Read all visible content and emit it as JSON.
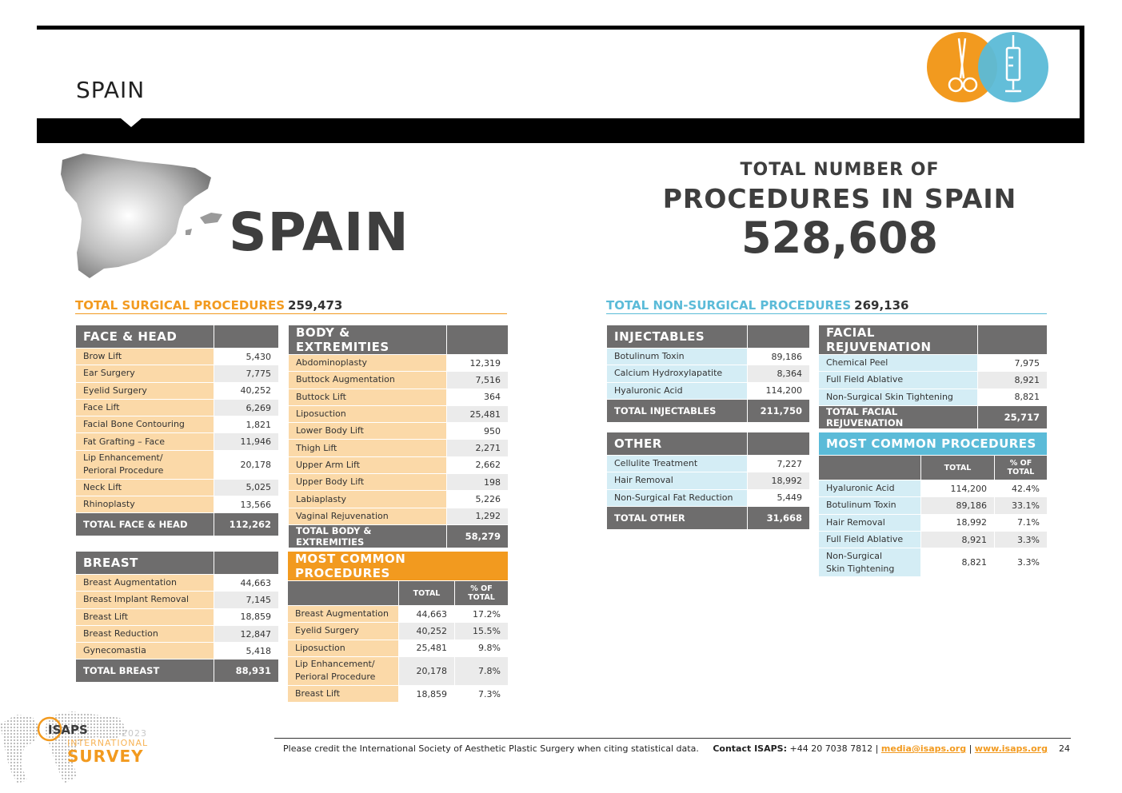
{
  "header": {
    "title": "SPAIN"
  },
  "icons": {
    "left": "scissors-icon",
    "right": "syringe-icon",
    "orange": "#f29a1f",
    "blue": "#5bbbd8"
  },
  "country": {
    "name": "SPAIN"
  },
  "total": {
    "line1": "TOTAL NUMBER OF",
    "line2": "PROCEDURES IN SPAIN",
    "value": "528,608"
  },
  "surgical": {
    "title": "TOTAL SURGICAL PROCEDURES",
    "total": "259,473"
  },
  "nonsurgical": {
    "title": "TOTAL NON-SURGICAL PROCEDURES",
    "total": "269,136"
  },
  "face_head": {
    "title": "FACE & HEAD",
    "rows": [
      {
        "label": "Brow Lift",
        "value": "5,430"
      },
      {
        "label": "Ear Surgery",
        "value": "7,775"
      },
      {
        "label": "Eyelid Surgery",
        "value": "40,252"
      },
      {
        "label": "Face Lift",
        "value": "6,269"
      },
      {
        "label": "Facial Bone Contouring",
        "value": "1,821"
      },
      {
        "label": "Fat Grafting – Face",
        "value": "11,946"
      },
      {
        "label": "Lip Enhancement/\nPerioral Procedure",
        "value": "20,178"
      },
      {
        "label": "Neck Lift",
        "value": "5,025"
      },
      {
        "label": "Rhinoplasty",
        "value": "13,566"
      }
    ],
    "total_label": "TOTAL FACE & HEAD",
    "total_value": "112,262"
  },
  "body_ext": {
    "title": "BODY & EXTREMITIES",
    "rows": [
      {
        "label": "Abdominoplasty",
        "value": "12,319"
      },
      {
        "label": "Buttock Augmentation",
        "value": "7,516"
      },
      {
        "label": "Buttock Lift",
        "value": "364"
      },
      {
        "label": "Liposuction",
        "value": "25,481"
      },
      {
        "label": "Lower Body Lift",
        "value": "950"
      },
      {
        "label": "Thigh Lift",
        "value": "2,271"
      },
      {
        "label": "Upper Arm Lift",
        "value": "2,662"
      },
      {
        "label": "Upper Body Lift",
        "value": "198"
      },
      {
        "label": "Labiaplasty",
        "value": "5,226"
      },
      {
        "label": "Vaginal Rejuvenation",
        "value": "1,292"
      }
    ],
    "total_label": "TOTAL BODY & EXTREMITIES",
    "total_value": "58,279"
  },
  "breast": {
    "title": "BREAST",
    "rows": [
      {
        "label": "Breast Augmentation",
        "value": "44,663"
      },
      {
        "label": "Breast Implant Removal",
        "value": "7,145"
      },
      {
        "label": "Breast Lift",
        "value": "18,859"
      },
      {
        "label": "Breast Reduction",
        "value": "12,847"
      },
      {
        "label": "Gynecomastia",
        "value": "5,418"
      }
    ],
    "total_label": "TOTAL BREAST",
    "total_value": "88,931"
  },
  "common_surg": {
    "title": "MOST COMMON PROCEDURES",
    "col_total": "TOTAL",
    "col_pct": "% OF\nTOTAL",
    "rows": [
      {
        "label": "Breast Augmentation",
        "total": "44,663",
        "pct": "17.2%"
      },
      {
        "label": "Eyelid Surgery",
        "total": "40,252",
        "pct": "15.5%"
      },
      {
        "label": "Liposuction",
        "total": "25,481",
        "pct": "9.8%"
      },
      {
        "label": "Lip Enhancement/\nPerioral Procedure",
        "total": "20,178",
        "pct": "7.8%"
      },
      {
        "label": "Breast Lift",
        "total": "18,859",
        "pct": "7.3%"
      }
    ]
  },
  "injectables": {
    "title": "INJECTABLES",
    "rows": [
      {
        "label": "Botulinum Toxin",
        "value": "89,186"
      },
      {
        "label": "Calcium Hydroxylapatite",
        "value": "8,364"
      },
      {
        "label": "Hyaluronic Acid",
        "value": "114,200"
      }
    ],
    "total_label": "TOTAL INJECTABLES",
    "total_value": "211,750"
  },
  "facial_rej": {
    "title": "FACIAL REJUVENATION",
    "rows": [
      {
        "label": "Chemical Peel",
        "value": "7,975"
      },
      {
        "label": "Full Field Ablative",
        "value": "8,921"
      },
      {
        "label": "Non-Surgical Skin Tightening",
        "value": "8,821"
      }
    ],
    "total_label": "TOTAL FACIAL REJUVENATION",
    "total_value": "25,717"
  },
  "other": {
    "title": "OTHER",
    "rows": [
      {
        "label": "Cellulite Treatment",
        "value": "7,227"
      },
      {
        "label": "Hair Removal",
        "value": "18,992"
      },
      {
        "label": "Non-Surgical Fat Reduction",
        "value": "5,449"
      }
    ],
    "total_label": "TOTAL OTHER",
    "total_value": "31,668"
  },
  "common_nonsurg": {
    "title": "MOST COMMON PROCEDURES",
    "col_total": "TOTAL",
    "col_pct": "% OF\nTOTAL",
    "rows": [
      {
        "label": "Hyaluronic Acid",
        "total": "114,200",
        "pct": "42.4%"
      },
      {
        "label": "Botulinum Toxin",
        "total": "89,186",
        "pct": "33.1%"
      },
      {
        "label": "Hair Removal",
        "total": "18,992",
        "pct": "7.1%"
      },
      {
        "label": "Full Field Ablative",
        "total": "8,921",
        "pct": "3.3%"
      },
      {
        "label": "Non-Surgical\nSkin Tightening",
        "total": "8,821",
        "pct": "3.3%"
      }
    ]
  },
  "footer": {
    "credit": "Please credit the International Society of Aesthetic Plastic Surgery when citing statistical data.",
    "contact_label": "Contact ISAPS:",
    "phone": "+44 20 7038 7812 |",
    "email": "media@isaps.org",
    "sep": "|",
    "web": "www.isaps.org",
    "page": "24"
  },
  "logo": {
    "isaps": "ISAPS",
    "year": "2023",
    "international": "INTERNATIONAL",
    "survey": "SURVEY"
  }
}
